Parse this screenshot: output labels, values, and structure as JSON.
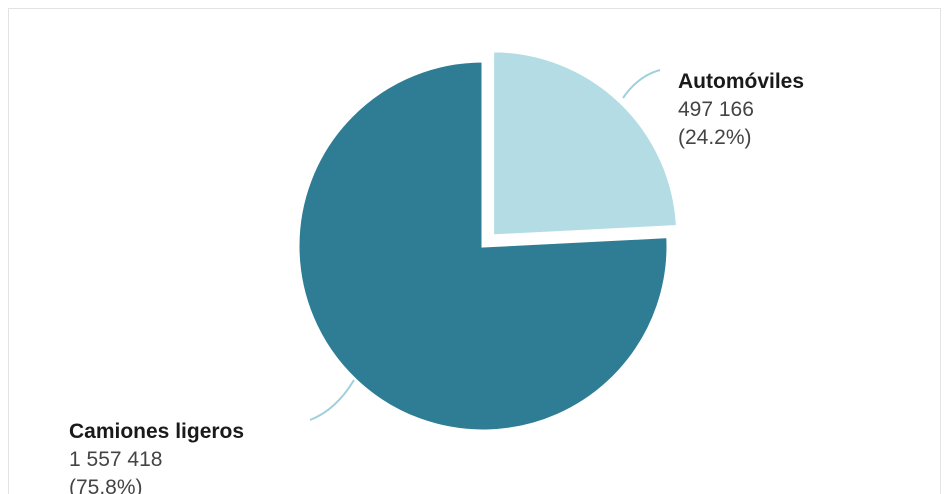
{
  "colors": {
    "background": "#ffffff",
    "frame_border": "#e3e3e3",
    "leader_line": "#9fd0dc"
  },
  "chart_data": {
    "type": "pie",
    "title": "",
    "slices": [
      {
        "label": "Automóviles",
        "value": 497166,
        "value_text": "497 166",
        "percent": 24.2,
        "percent_text": "(24.2%)",
        "color": "#b3dce4",
        "exploded": true
      },
      {
        "label": "Camiones ligeros",
        "value": 1557418,
        "value_text": "1 557 418",
        "percent": 75.8,
        "percent_text": "(75.8%)",
        "color": "#2e7d95",
        "exploded": false
      }
    ],
    "start_angle": "12 o'clock",
    "direction": "clockwise"
  }
}
